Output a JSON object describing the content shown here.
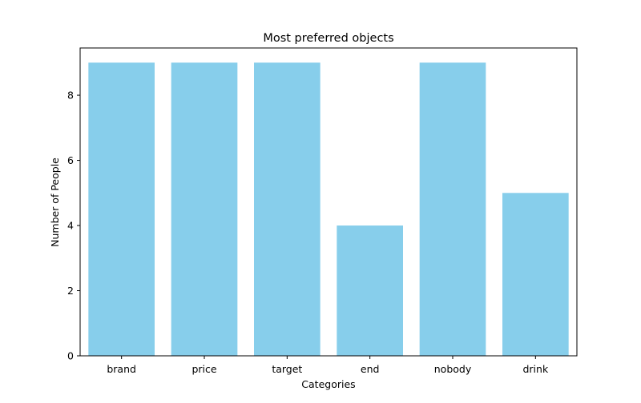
{
  "chart_data": {
    "type": "bar",
    "title": "Most preferred objects",
    "xlabel": "Categories",
    "ylabel": "Number of People",
    "categories": [
      "brand",
      "price",
      "target",
      "end",
      "nobody",
      "drink"
    ],
    "values": [
      9,
      9,
      9,
      4,
      9,
      5
    ],
    "ylim": [
      0,
      9.45
    ],
    "yticks": [
      0,
      2,
      4,
      6,
      8
    ],
    "bar_color": "#87ceeb",
    "grid": false,
    "legend": "none"
  }
}
